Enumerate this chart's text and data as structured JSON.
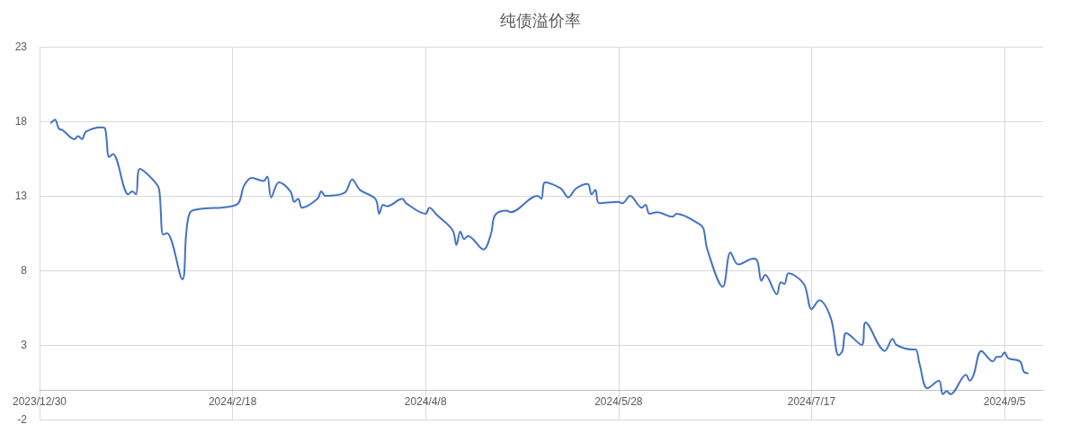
{
  "chart_data": {
    "type": "line",
    "title": "纯债溢价率",
    "x": [
      "2024-01-02",
      "2024-01-03",
      "2024-01-04",
      "2024-01-05",
      "2024-01-08",
      "2024-01-09",
      "2024-01-10",
      "2024-01-11",
      "2024-01-15",
      "2024-01-16",
      "2024-01-17",
      "2024-01-18",
      "2024-01-22",
      "2024-01-23",
      "2024-01-24",
      "2024-01-25",
      "2024-01-29",
      "2024-01-30",
      "2024-01-31",
      "2024-02-01",
      "2024-02-05",
      "2024-02-06",
      "2024-02-07",
      "2024-02-09",
      "2024-02-19",
      "2024-02-21",
      "2024-02-23",
      "2024-02-26",
      "2024-02-27",
      "2024-02-28",
      "2024-03-01",
      "2024-03-04",
      "2024-03-05",
      "2024-03-06",
      "2024-03-07",
      "2024-03-11",
      "2024-03-12",
      "2024-03-13",
      "2024-03-18",
      "2024-03-20",
      "2024-03-22",
      "2024-03-26",
      "2024-03-27",
      "2024-03-28",
      "2024-03-29",
      "2024-04-02",
      "2024-04-03",
      "2024-04-08",
      "2024-04-09",
      "2024-04-11",
      "2024-04-15",
      "2024-04-16",
      "2024-04-17",
      "2024-04-18",
      "2024-04-19",
      "2024-04-23",
      "2024-04-25",
      "2024-04-26",
      "2024-04-29",
      "2024-04-30",
      "2024-05-07",
      "2024-05-08",
      "2024-05-09",
      "2024-05-13",
      "2024-05-15",
      "2024-05-17",
      "2024-05-20",
      "2024-05-21",
      "2024-05-22",
      "2024-05-23",
      "2024-05-28",
      "2024-05-29",
      "2024-05-31",
      "2024-06-03",
      "2024-06-04",
      "2024-06-05",
      "2024-06-07",
      "2024-06-11",
      "2024-06-12",
      "2024-06-18",
      "2024-06-19",
      "2024-06-20",
      "2024-06-24",
      "2024-06-26",
      "2024-06-28",
      "2024-07-02",
      "2024-07-03",
      "2024-07-04",
      "2024-07-05",
      "2024-07-08",
      "2024-07-09",
      "2024-07-10",
      "2024-07-11",
      "2024-07-15",
      "2024-07-17",
      "2024-07-19",
      "2024-07-22",
      "2024-07-24",
      "2024-07-25",
      "2024-07-26",
      "2024-07-30",
      "2024-07-31",
      "2024-08-05",
      "2024-08-07",
      "2024-08-08",
      "2024-08-12",
      "2024-08-13",
      "2024-08-14",
      "2024-08-16",
      "2024-08-19",
      "2024-08-20",
      "2024-08-21",
      "2024-08-22",
      "2024-08-26",
      "2024-08-27",
      "2024-08-28",
      "2024-08-30",
      "2024-09-02",
      "2024-09-03",
      "2024-09-04",
      "2024-09-05",
      "2024-09-06",
      "2024-09-09",
      "2024-09-10",
      "2024-09-11"
    ],
    "series": [
      {
        "color": "#4472c4",
        "values": [
          17.9,
          18.1,
          17.5,
          17.4,
          16.8,
          17.0,
          16.8,
          17.3,
          17.6,
          17.5,
          15.6,
          15.8,
          13.1,
          13.3,
          13.1,
          14.8,
          13.9,
          13.4,
          10.4,
          10.5,
          7.4,
          10.5,
          11.9,
          12.1,
          12.4,
          13.7,
          14.2,
          14.0,
          14.3,
          12.9,
          13.9,
          13.3,
          12.6,
          12.8,
          12.2,
          12.8,
          13.3,
          13.0,
          13.2,
          14.1,
          13.4,
          12.8,
          11.8,
          12.4,
          12.3,
          12.8,
          12.5,
          11.8,
          12.2,
          11.7,
          10.7,
          9.7,
          10.6,
          10.1,
          10.3,
          9.4,
          10.5,
          11.7,
          12.0,
          11.9,
          13.0,
          12.8,
          13.9,
          13.5,
          12.9,
          13.5,
          13.8,
          13.1,
          13.4,
          12.5,
          12.6,
          12.5,
          13.0,
          12.2,
          12.4,
          11.8,
          11.9,
          11.6,
          11.8,
          11.1,
          10.8,
          9.4,
          6.9,
          9.2,
          8.4,
          8.8,
          8.6,
          7.3,
          7.7,
          6.4,
          7.2,
          7.1,
          7.8,
          7.1,
          5.4,
          6.0,
          4.8,
          2.3,
          2.6,
          3.8,
          3.0,
          4.5,
          2.6,
          3.4,
          3.0,
          2.7,
          2.7,
          1.7,
          0.1,
          0.6,
          -0.3,
          -0.1,
          -0.3,
          1.0,
          0.6,
          1.0,
          2.6,
          1.9,
          2.2,
          2.2,
          2.5,
          2.1,
          1.9,
          1.2,
          1.1
        ]
      }
    ],
    "xlim": [
      "2023-12-30",
      "2024-09-15"
    ],
    "xticks": [
      {
        "value": "2023-12-30",
        "label": "2023/12/30"
      },
      {
        "value": "2024-02-18",
        "label": "2024/2/18"
      },
      {
        "value": "2024-04-08",
        "label": "2024/4/8"
      },
      {
        "value": "2024-05-28",
        "label": "2024/5/28"
      },
      {
        "value": "2024-07-17",
        "label": "2024/7/17"
      },
      {
        "value": "2024-09-05",
        "label": "2024/9/5"
      }
    ],
    "ylim": [
      -2,
      23
    ],
    "yticks": [
      -2,
      3,
      8,
      13,
      18,
      23
    ],
    "grid": true,
    "marker": "none",
    "line_style": "solid"
  }
}
